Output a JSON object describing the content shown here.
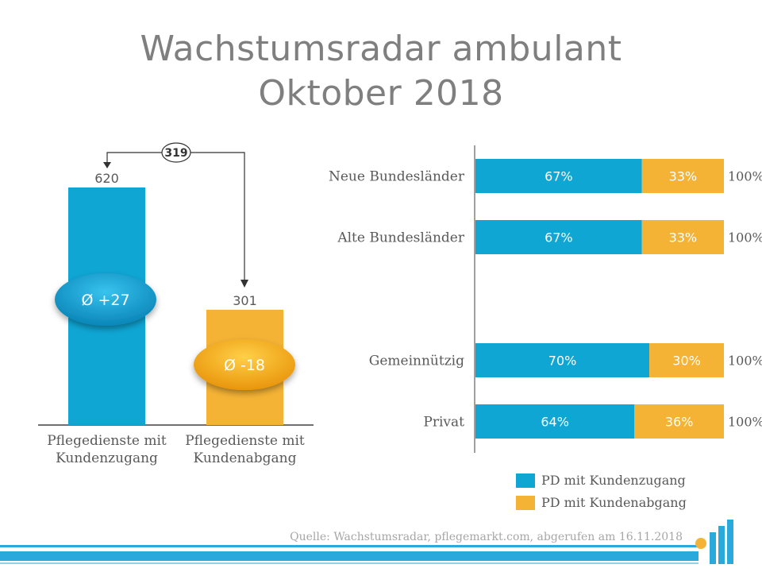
{
  "title_line1": "Wachstumsradar ambulant",
  "title_line2": "Oktober 2018",
  "colors": {
    "blue": "#0fa6d4",
    "orange": "#f5b335",
    "axis": "#404040",
    "footer_blue": "#2aa9dc"
  },
  "source": "Quelle: Wachstumsradar, pflegemarkt.com, abgerufen am 16.11.2018",
  "legend": [
    {
      "label": "PD mit Kundenzugang",
      "color": "#0fa6d4"
    },
    {
      "label": "PD mit Kundenabgang",
      "color": "#f5b335"
    }
  ],
  "chart_data": [
    {
      "type": "bar",
      "categories": [
        "Pflegedienste mit Kundenzugang",
        "Pflegedienste mit Kundenabgang"
      ],
      "category_lines": [
        [
          "Pflegedienste mit",
          "Kundenzugang"
        ],
        [
          "Pflegedienste mit",
          "Kundenabgang"
        ]
      ],
      "values": [
        620,
        301
      ],
      "colors": [
        "#0fa6d4",
        "#f5b335"
      ],
      "difference_label": "319",
      "bubbles": [
        "Ø +27",
        "Ø -18"
      ],
      "ylim": [
        0,
        650
      ]
    },
    {
      "type": "bar",
      "orientation": "horizontal",
      "stacked": true,
      "categories": [
        "Neue Bundesländer",
        "Alte Bundesländer",
        "Gemeinnützig",
        "Privat"
      ],
      "series": [
        {
          "name": "PD mit Kundenzugang",
          "values": [
            67,
            67,
            70,
            64
          ]
        },
        {
          "name": "PD mit Kundenabgang",
          "values": [
            33,
            33,
            30,
            36
          ]
        }
      ],
      "value_labels": [
        [
          "67%",
          "67%",
          "70%",
          "64%"
        ],
        [
          "33%",
          "33%",
          "30%",
          "36%"
        ]
      ],
      "total_labels": [
        "100%",
        "100%",
        "100%",
        "100%"
      ],
      "xlim": [
        0,
        100
      ]
    }
  ]
}
